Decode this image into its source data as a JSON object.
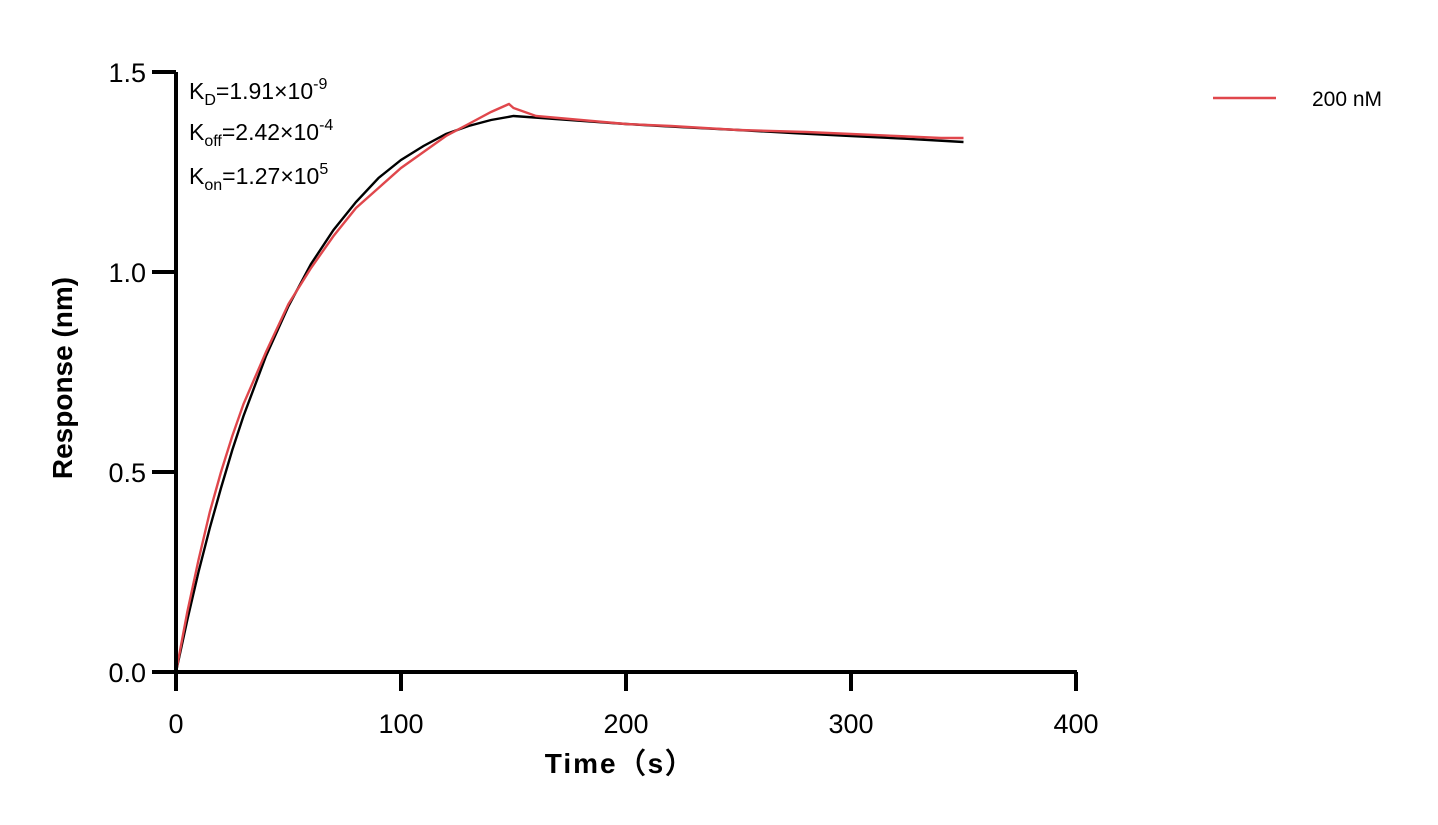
{
  "chart_data": {
    "type": "line",
    "xlabel": "Time（s）",
    "ylabel": "Response (nm)",
    "xlim": [
      0,
      400
    ],
    "ylim": [
      0,
      1.5
    ],
    "x_ticks": [
      0,
      100,
      200,
      300,
      400
    ],
    "x_tick_labels": [
      "0",
      "100",
      "200",
      "300",
      "400"
    ],
    "y_ticks": [
      0.0,
      0.5,
      1.0,
      1.5
    ],
    "y_tick_labels": [
      "0.0",
      "0.5",
      "1.0",
      "1.5"
    ],
    "grid": false,
    "legend_position": "top-right",
    "annotations": {
      "kd": {
        "main": "K",
        "sub": "D",
        "value": "=1.91×10",
        "exp": "-9"
      },
      "koff": {
        "main": "K",
        "sub": "off",
        "value": "=2.42×10",
        "exp": "-4"
      },
      "kon": {
        "main": "K",
        "sub": "on",
        "value": "=1.27×10",
        "exp": "5"
      }
    },
    "series": [
      {
        "name": "200 nM",
        "color": "#e0474c",
        "x": [
          0,
          5,
          10,
          15,
          20,
          25,
          30,
          40,
          50,
          60,
          70,
          80,
          90,
          100,
          110,
          120,
          130,
          140,
          148,
          150,
          155,
          160,
          170,
          180,
          200,
          220,
          250,
          280,
          300,
          320,
          340,
          350
        ],
        "y": [
          0.0,
          0.15,
          0.28,
          0.4,
          0.5,
          0.59,
          0.67,
          0.8,
          0.92,
          1.01,
          1.09,
          1.16,
          1.21,
          1.26,
          1.3,
          1.34,
          1.37,
          1.4,
          1.42,
          1.41,
          1.4,
          1.39,
          1.385,
          1.38,
          1.37,
          1.365,
          1.355,
          1.35,
          1.345,
          1.34,
          1.335,
          1.335
        ]
      },
      {
        "name": "",
        "color": "#000000",
        "x": [
          0,
          5,
          10,
          15,
          20,
          25,
          30,
          40,
          50,
          60,
          70,
          80,
          90,
          100,
          110,
          120,
          130,
          140,
          150,
          175,
          200,
          225,
          250,
          275,
          300,
          325,
          350
        ],
        "y": [
          0.0,
          0.13,
          0.25,
          0.36,
          0.46,
          0.555,
          0.64,
          0.79,
          0.915,
          1.02,
          1.105,
          1.175,
          1.235,
          1.28,
          1.315,
          1.345,
          1.365,
          1.38,
          1.39,
          1.38,
          1.37,
          1.362,
          1.355,
          1.347,
          1.34,
          1.333,
          1.325
        ]
      }
    ]
  }
}
